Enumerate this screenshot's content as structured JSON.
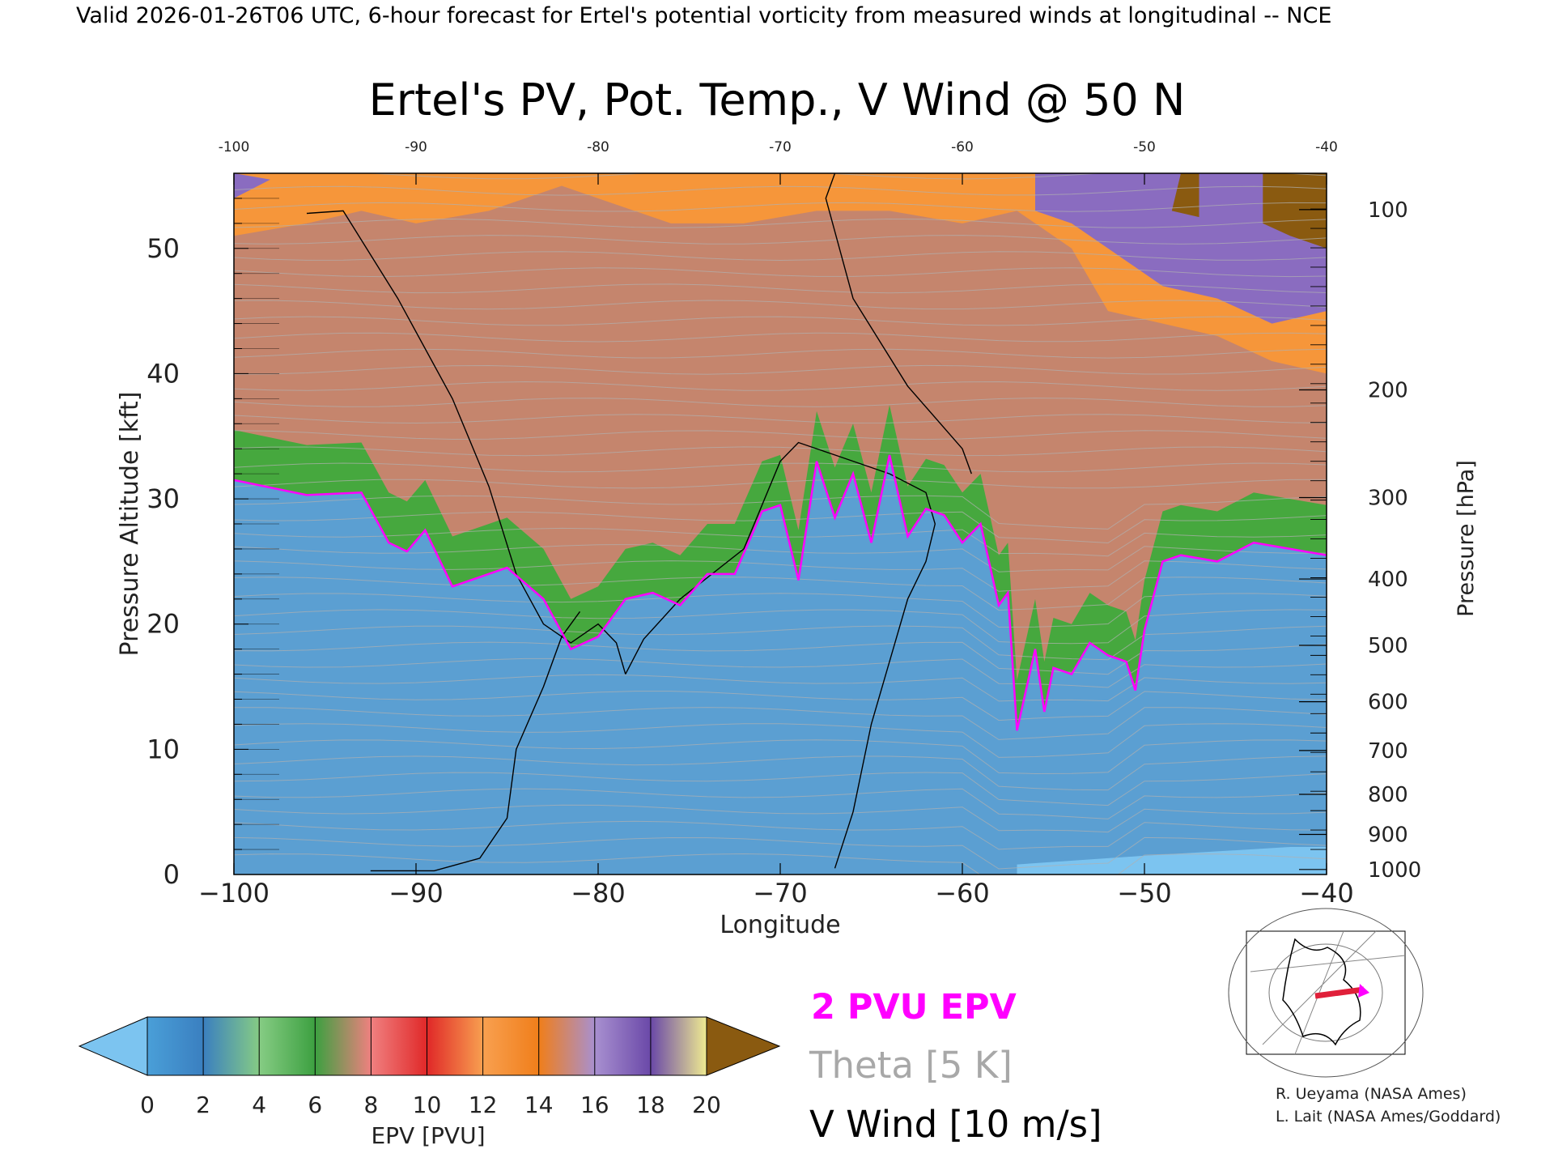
{
  "header": {
    "valid_line": "Valid 2026-01-26T06 UTC, 6-hour forecast for Ertel's potential vorticity from measured winds at longitudinal -- NCE"
  },
  "chart_data": {
    "type": "heatmap",
    "title": "Ertel's PV, Pot. Temp., V Wind @ 50 N",
    "xlabel": "Longitude",
    "ylabel": "Pressure Altitude [kft]",
    "y2label": "Pressure [hPa]",
    "xlim": [
      -100,
      -40
    ],
    "ylim": [
      0,
      56
    ],
    "x_ticks": [
      -100,
      -90,
      -80,
      -70,
      -60,
      -50,
      -40
    ],
    "x_tick_labels": [
      "−100",
      "−90",
      "−80",
      "−70",
      "−60",
      "−50",
      "−40"
    ],
    "x_top_tick_labels": [
      "-100",
      "-90",
      "-80",
      "-70",
      "-60",
      "-50",
      "-40"
    ],
    "y_ticks": [
      0,
      10,
      20,
      30,
      40,
      50
    ],
    "y_tick_labels": [
      "0",
      "10",
      "20",
      "30",
      "40",
      "50"
    ],
    "pressure_ticks": [
      {
        "hPa": 100,
        "kft": 53.1,
        "label": "100"
      },
      {
        "hPa": 200,
        "kft": 38.7,
        "label": "200"
      },
      {
        "hPa": 300,
        "kft": 30.1,
        "label": "300"
      },
      {
        "hPa": 400,
        "kft": 23.6,
        "label": "400"
      },
      {
        "hPa": 500,
        "kft": 18.3,
        "label": "500"
      },
      {
        "hPa": 600,
        "kft": 13.8,
        "label": "600"
      },
      {
        "hPa": 700,
        "kft": 9.9,
        "label": "700"
      },
      {
        "hPa": 800,
        "kft": 6.4,
        "label": "800"
      },
      {
        "hPa": 900,
        "kft": 3.2,
        "label": "900"
      },
      {
        "hPa": 1000,
        "kft": 0.4,
        "label": "1000"
      }
    ],
    "tropopause_2pvu_kft": {
      "lon": [
        -100,
        -96,
        -93,
        -91.5,
        -90.5,
        -89.5,
        -88,
        -85,
        -83,
        -81.5,
        -80,
        -78.5,
        -77,
        -75.5,
        -74,
        -72.5,
        -71,
        -70,
        -69,
        -68,
        -67,
        -66,
        -65,
        -64,
        -63,
        -62,
        -61,
        -60,
        -59,
        -58,
        -57.5,
        -57,
        -56,
        -55.5,
        -55,
        -54,
        -53,
        -52,
        -51,
        -50.5,
        -50,
        -49,
        -48,
        -46,
        -44,
        -42,
        -40
      ],
      "kft": [
        31.5,
        30.3,
        30.5,
        26.5,
        25.8,
        27.5,
        23,
        24.5,
        22,
        18,
        19,
        22,
        22.5,
        21.5,
        24,
        24,
        29,
        29.5,
        23.5,
        33,
        28.5,
        32,
        26.5,
        33.5,
        27,
        29.2,
        28.7,
        26.5,
        28,
        21.5,
        22.5,
        11.5,
        18,
        13,
        16.5,
        16,
        18.5,
        17.5,
        17,
        14.7,
        19.5,
        25,
        25.5,
        25,
        26.5,
        26,
        25.5
      ]
    },
    "wind_contours_ms": [
      {
        "label": "0",
        "lon": [
          -96,
          -94,
          -91,
          -88,
          -86,
          -84.5,
          -83,
          -81.5,
          -80,
          -79,
          -78.5
        ],
        "kft": [
          52.8,
          53,
          46,
          38,
          31,
          24,
          20,
          18.5,
          20,
          18.5,
          16
        ]
      },
      {
        "label": "0",
        "lon": [
          -92.5,
          -89,
          -86.5,
          -85,
          -84.5,
          -83,
          -82,
          -81
        ],
        "kft": [
          0.3,
          0.3,
          1.3,
          4.5,
          10,
          15,
          19,
          21
        ]
      },
      {
        "label": "0",
        "lon": [
          -67,
          -66,
          -65,
          -64,
          -63,
          -62,
          -61.5,
          -62,
          -64,
          -67,
          -69,
          -70,
          -72,
          -75.5,
          -77.5,
          -78.5
        ],
        "kft": [
          0.5,
          5,
          12,
          17,
          22,
          25,
          28,
          30.5,
          32,
          33.5,
          34.5,
          33,
          26,
          22,
          18.8,
          16
        ]
      },
      {
        "label": "0",
        "lon": [
          -67,
          -67.5,
          -66,
          -63,
          -60,
          -59.5
        ],
        "kft": [
          56,
          54,
          46,
          39,
          34,
          32
        ]
      }
    ],
    "colorbar": {
      "label": "EPV [PVU]",
      "min": 0,
      "max": 20,
      "tick_labels": [
        "0",
        "2",
        "4",
        "6",
        "8",
        "10",
        "12",
        "14",
        "16",
        "18",
        "20"
      ],
      "colors": [
        "#4a9fd8",
        "#3a7fc0",
        "#86cc84",
        "#3ca040",
        "#f08080",
        "#e02828",
        "#f8a050",
        "#f07e1a",
        "#a890d0",
        "#6a48a8",
        "#f0ec90",
        "#8a5a10"
      ],
      "under_color": "#7cc4f0",
      "over_color": "#8a5a10"
    },
    "legend": {
      "epv": {
        "label": "2 PVU EPV",
        "color": "#ff00ff"
      },
      "theta": {
        "label": "Theta [5 K]",
        "color": "#a0a0a0"
      },
      "wind": {
        "label": "V Wind [10 m/s]",
        "color": "#000000"
      }
    },
    "credits": [
      "R. Ueyama (NASA Ames)",
      "L. Lait (NASA Ames/Goddard)"
    ]
  }
}
